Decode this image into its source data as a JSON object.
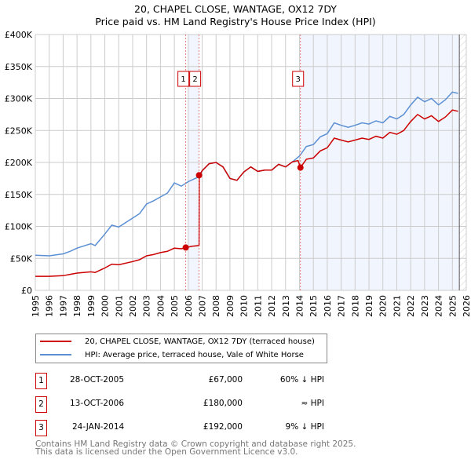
{
  "title_line1": "20, CHAPEL CLOSE, WANTAGE, OX12 7DY",
  "title_line2": "Price paid vs. HM Land Registry's House Price Index (HPI)",
  "chart_data": {
    "type": "line",
    "title": "20, CHAPEL CLOSE, WANTAGE, OX12 7DY — Price paid vs. HM Land Registry's House Price Index (HPI)",
    "xlim": [
      1995,
      2026
    ],
    "ylim": [
      0,
      400000
    ],
    "x_ticks": [
      "1995",
      "1996",
      "1997",
      "1998",
      "1999",
      "2000",
      "2001",
      "2002",
      "2003",
      "2004",
      "2005",
      "2006",
      "2007",
      "2008",
      "2009",
      "2010",
      "2011",
      "2012",
      "2013",
      "2014",
      "2015",
      "2016",
      "2017",
      "2018",
      "2019",
      "2020",
      "2021",
      "2022",
      "2023",
      "2024",
      "2025",
      "2026"
    ],
    "y_ticks": [
      {
        "v": 0,
        "label": "£0"
      },
      {
        "v": 50000,
        "label": "£50K"
      },
      {
        "v": 100000,
        "label": "£100K"
      },
      {
        "v": 150000,
        "label": "£150K"
      },
      {
        "v": 200000,
        "label": "£200K"
      },
      {
        "v": 250000,
        "label": "£250K"
      },
      {
        "v": 300000,
        "label": "£300K"
      },
      {
        "v": 350000,
        "label": "£350K"
      },
      {
        "v": 400000,
        "label": "£400K"
      }
    ],
    "grid": true,
    "shaded_ranges": [
      [
        2006.0,
        2006.78
      ],
      [
        2014.07,
        2025.5
      ]
    ],
    "forecast_hatch_from": 2025.5,
    "series": [
      {
        "name": "20, CHAPEL CLOSE, WANTAGE, OX12 7DY (terraced house)",
        "color": "#cc0000",
        "x": [
          1995,
          1996,
          1997,
          1997.5,
          1998,
          1999,
          1999.3,
          2000,
          2000.5,
          2001,
          2002,
          2002.5,
          2003,
          2003.5,
          2004,
          2004.5,
          2005,
          2005.5,
          2005.82,
          2006.3,
          2006.78,
          2006.79,
          2007,
          2007.5,
          2008,
          2008.5,
          2009,
          2009.5,
          2010,
          2010.5,
          2011,
          2011.5,
          2012,
          2012.5,
          2013,
          2013.5,
          2013.9,
          2014.07,
          2014.5,
          2015,
          2015.5,
          2016,
          2016.5,
          2017,
          2017.5,
          2018,
          2018.5,
          2019,
          2019.5,
          2020,
          2020.5,
          2021,
          2021.5,
          2022,
          2022.5,
          2023,
          2023.5,
          2024,
          2024.5,
          2025,
          2025.4
        ],
        "y": [
          22000,
          22000,
          23000,
          25000,
          27000,
          29000,
          28000,
          35000,
          41000,
          40000,
          45000,
          48000,
          54000,
          56000,
          59000,
          61000,
          66000,
          65000,
          67000,
          69000,
          70000,
          180000,
          187000,
          198000,
          200000,
          193000,
          175000,
          172000,
          185000,
          193000,
          186000,
          188000,
          188000,
          197000,
          193000,
          201000,
          203000,
          192000,
          205000,
          207000,
          218000,
          223000,
          238000,
          235000,
          232000,
          235000,
          238000,
          236000,
          241000,
          238000,
          247000,
          244000,
          250000,
          264000,
          275000,
          268000,
          273000,
          264000,
          271000,
          282000,
          280000
        ]
      },
      {
        "name": "HPI: Average price, terraced house, Vale of White Horse",
        "color": "#5b8fd4",
        "x": [
          1995,
          1996,
          1997,
          1997.5,
          1998,
          1999,
          1999.3,
          2000,
          2000.5,
          2001,
          2002,
          2002.5,
          2003,
          2003.5,
          2004,
          2004.5,
          2005,
          2005.5,
          2006,
          2006.8,
          2007,
          2007.5,
          2008,
          2008.5,
          2009,
          2009.5,
          2010,
          2010.5,
          2011,
          2011.5,
          2012,
          2012.5,
          2013,
          2013.5,
          2014,
          2014.5,
          2015,
          2015.5,
          2016,
          2016.5,
          2017,
          2017.5,
          2018,
          2018.5,
          2019,
          2019.5,
          2020,
          2020.5,
          2021,
          2021.5,
          2022,
          2022.5,
          2023,
          2023.5,
          2024,
          2024.5,
          2025,
          2025.4
        ],
        "y": [
          55000,
          54000,
          57000,
          61000,
          66000,
          73000,
          70000,
          88000,
          102000,
          99000,
          113000,
          120000,
          135000,
          140000,
          146000,
          152000,
          168000,
          163000,
          170000,
          178000,
          187000,
          198000,
          200000,
          193000,
          175000,
          172000,
          185000,
          193000,
          186000,
          188000,
          188000,
          197000,
          193000,
          201000,
          210000,
          225000,
          228000,
          240000,
          245000,
          262000,
          258000,
          255000,
          258000,
          262000,
          260000,
          265000,
          262000,
          272000,
          268000,
          275000,
          290000,
          302000,
          295000,
          300000,
          290000,
          298000,
          310000,
          308000
        ]
      }
    ],
    "sales": [
      {
        "id": "1",
        "x": 2005.82,
        "y": 67000
      },
      {
        "id": "2",
        "x": 2006.78,
        "y": 180000
      },
      {
        "id": "3",
        "x": 2014.07,
        "y": 192000
      }
    ],
    "legend_placement": "below"
  },
  "legend": {
    "property": "20, CHAPEL CLOSE, WANTAGE, OX12 7DY (terraced house)",
    "hpi": "HPI: Average price, terraced house, Vale of White Horse"
  },
  "transactions": [
    {
      "num": "1",
      "date": "28-OCT-2005",
      "price": "£67,000",
      "rel": "60% ↓ HPI"
    },
    {
      "num": "2",
      "date": "13-OCT-2006",
      "price": "£180,000",
      "rel": "≈ HPI"
    },
    {
      "num": "3",
      "date": "24-JAN-2014",
      "price": "£192,000",
      "rel": "9% ↓ HPI"
    }
  ],
  "footer_line1": "Contains HM Land Registry data © Crown copyright and database right 2025.",
  "footer_line2": "This data is licensed under the Open Government Licence v3.0."
}
